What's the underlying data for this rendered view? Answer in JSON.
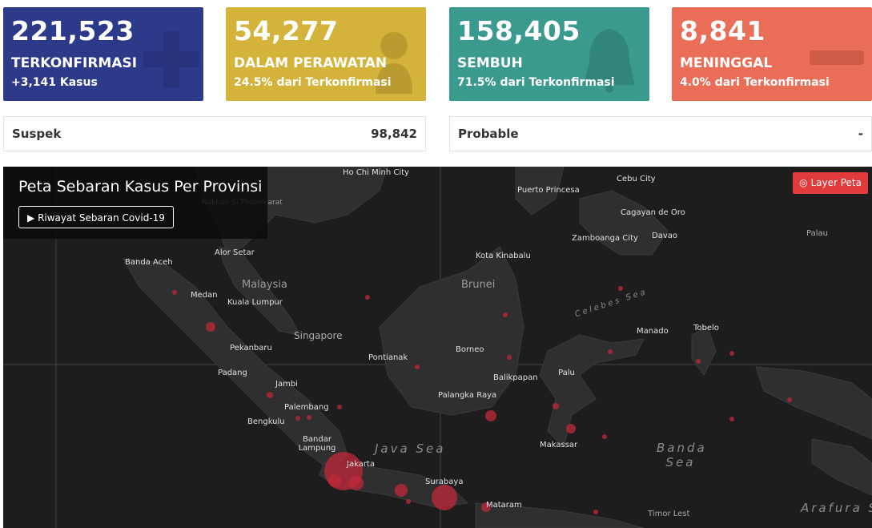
{
  "cards": [
    {
      "number": "221,523",
      "label": "TERKONFIRMASI",
      "sub": "+3,141 Kasus",
      "color": "#2d3a8a",
      "icon": "plus-icon"
    },
    {
      "number": "54,277",
      "label": "DALAM PERAWATAN",
      "sub": "24.5% dari Terkonfirmasi",
      "color": "#d4b33a",
      "icon": "patient-icon"
    },
    {
      "number": "158,405",
      "label": "SEMBUH",
      "sub": "71.5% dari Terkonfirmasi",
      "color": "#3b9a8e",
      "icon": "bell-icon"
    },
    {
      "number": "8,841",
      "label": "MENINGGAL",
      "sub": "4.0% dari Terkonfirmasi",
      "color": "#ea6e57",
      "icon": "minus-icon"
    }
  ],
  "suspek": {
    "label": "Suspek",
    "value": "98,842"
  },
  "probable": {
    "label": "Probable",
    "value": "-"
  },
  "map": {
    "title": "Peta Sebaran Kasus Per Provinsi",
    "history_button": "Riwayat Sebaran Covid-19",
    "layer_button": "Layer Peta",
    "countries": [
      "Malaysia",
      "Brunei",
      "Nakhon Si Thammarat"
    ],
    "seas": [
      "Java Sea",
      "Banda Sea",
      "Celebes Sea",
      "Arafura Sea"
    ],
    "cities": [
      "Ho Chi Minh City",
      "Cebu City",
      "Puerto Princesa",
      "Cagayan de Oro",
      "Zamboanga City",
      "Davao",
      "Palau",
      "Banda Aceh",
      "Alor Setar",
      "Kota Kinabalu",
      "Medan",
      "Kuala Lumpur",
      "Singapore",
      "Manado",
      "Tobelo",
      "Pekanbaru",
      "Pontianak",
      "Borneo",
      "Padang",
      "Jambi",
      "Palembang",
      "Balikpapan",
      "Palu",
      "Palangka Raya",
      "Bengkulu",
      "Bandar Lampung",
      "Makassar",
      "Jakarta",
      "Surabaya",
      "Mataram",
      "Timor Lest"
    ]
  }
}
